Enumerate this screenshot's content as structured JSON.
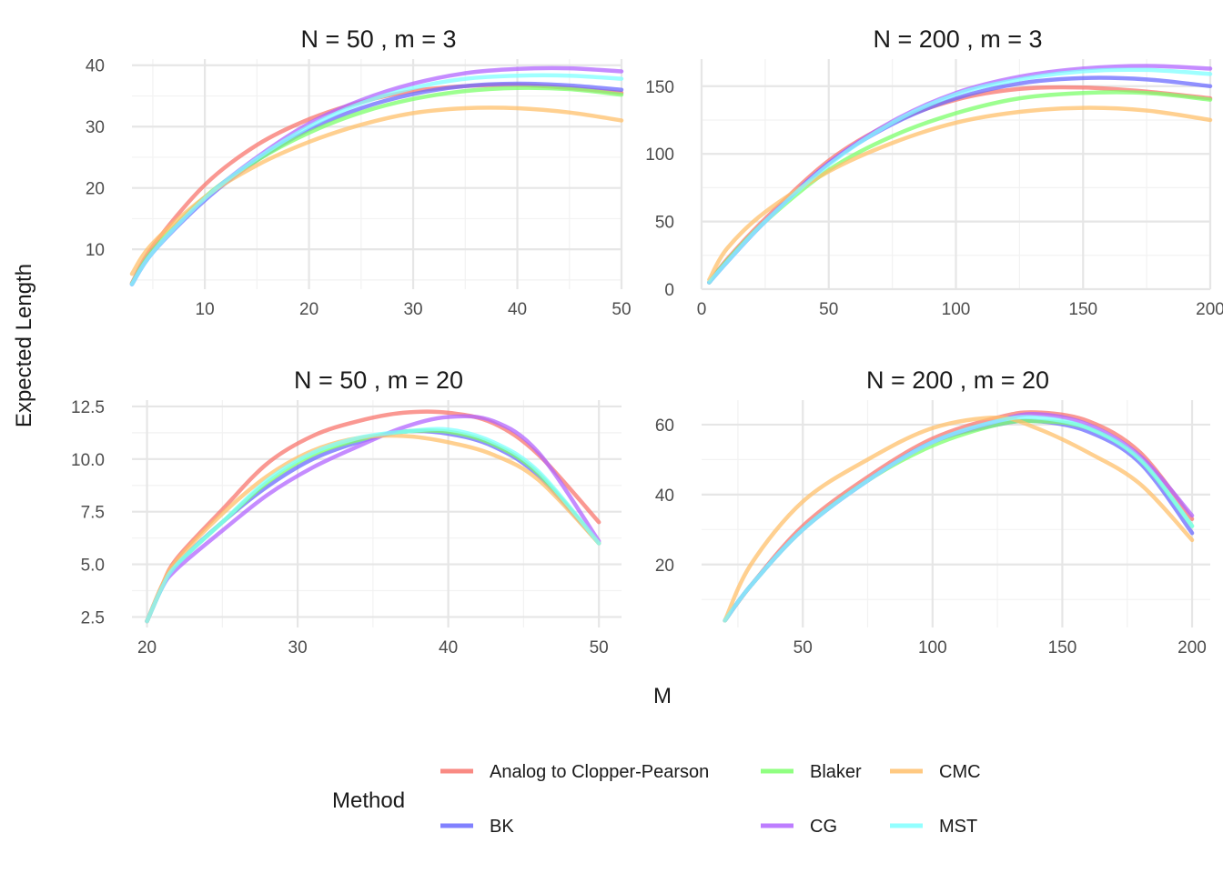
{
  "figure": {
    "xlabel": "M",
    "ylabel": "Expected Length",
    "legend": {
      "title": "Method",
      "position": "bottom"
    }
  },
  "series_styles": [
    {
      "name": "Analog to Clopper-Pearson",
      "color": "#F8766D"
    },
    {
      "name": "BK",
      "color": "#6B6BFF"
    },
    {
      "name": "Blaker",
      "color": "#7CFF6B"
    },
    {
      "name": "CG",
      "color": "#B266FF"
    },
    {
      "name": "CMC",
      "color": "#FFC06B"
    },
    {
      "name": "MST",
      "color": "#7FFFFF"
    }
  ],
  "chart_data": [
    {
      "type": "line",
      "title": "N = 50 , m = 3",
      "xlim": [
        3,
        50
      ],
      "ylim": [
        3.5,
        41
      ],
      "xticks": [
        10,
        20,
        30,
        40,
        50
      ],
      "yticks": [
        10,
        20,
        30,
        40
      ],
      "grid": true,
      "series": [
        {
          "name": "Analog to Clopper-Pearson",
          "x": [
            3,
            5,
            10,
            15,
            20,
            25,
            30,
            35,
            40,
            45,
            50
          ],
          "y": [
            4.5,
            10.5,
            20.5,
            27,
            31.2,
            34,
            35.8,
            36.6,
            36.8,
            36.3,
            35.5
          ]
        },
        {
          "name": "BK",
          "x": [
            3,
            5,
            10,
            15,
            20,
            25,
            30,
            35,
            40,
            45,
            50
          ],
          "y": [
            4.3,
            9.5,
            18,
            24.5,
            29.5,
            33,
            35.3,
            36.6,
            37,
            36.7,
            36
          ]
        },
        {
          "name": "Blaker",
          "x": [
            3,
            5,
            10,
            15,
            20,
            25,
            30,
            35,
            40,
            45,
            50
          ],
          "y": [
            4.4,
            9.8,
            18.5,
            24.5,
            29,
            32.3,
            34.5,
            35.8,
            36.3,
            36.1,
            35.2
          ]
        },
        {
          "name": "CG",
          "x": [
            3,
            5,
            10,
            15,
            20,
            25,
            30,
            35,
            40,
            45,
            50
          ],
          "y": [
            4.3,
            9.5,
            18.3,
            25,
            30.5,
            34.3,
            37,
            38.7,
            39.4,
            39.5,
            39
          ]
        },
        {
          "name": "CMC",
          "x": [
            3,
            5,
            10,
            15,
            20,
            25,
            30,
            35,
            40,
            45,
            50
          ],
          "y": [
            6,
            11,
            18.5,
            23.7,
            27.5,
            30.3,
            32.2,
            33,
            33,
            32.3,
            31
          ]
        },
        {
          "name": "MST",
          "x": [
            3,
            5,
            10,
            15,
            20,
            25,
            30,
            35,
            40,
            45,
            50
          ],
          "y": [
            4.3,
            9.5,
            18.3,
            24.8,
            30,
            33.8,
            36.3,
            37.8,
            38.3,
            38.3,
            37.8
          ]
        }
      ]
    },
    {
      "type": "line",
      "title": "N = 200 , m = 3",
      "xlim": [
        0,
        200
      ],
      "ylim": [
        0,
        170
      ],
      "xticks": [
        0,
        50,
        100,
        150,
        200
      ],
      "yticks": [
        0,
        50,
        100,
        150
      ],
      "grid": true,
      "series": [
        {
          "name": "Analog to Clopper-Pearson",
          "x": [
            3,
            10,
            25,
            50,
            75,
            100,
            125,
            150,
            175,
            200
          ],
          "y": [
            5,
            22,
            52,
            95,
            123,
            140,
            148,
            149,
            146,
            141
          ]
        },
        {
          "name": "BK",
          "x": [
            3,
            10,
            25,
            50,
            75,
            100,
            125,
            150,
            175,
            200
          ],
          "y": [
            5,
            20,
            50,
            93,
            122,
            141,
            152,
            156,
            155,
            150
          ]
        },
        {
          "name": "Blaker",
          "x": [
            3,
            10,
            25,
            50,
            75,
            100,
            125,
            150,
            175,
            200
          ],
          "y": [
            5,
            21,
            50,
            88,
            113,
            130,
            141,
            145,
            145,
            140
          ]
        },
        {
          "name": "CG",
          "x": [
            3,
            10,
            25,
            50,
            75,
            100,
            125,
            150,
            175,
            200
          ],
          "y": [
            5,
            20,
            50,
            93,
            124,
            145,
            157,
            163,
            165,
            163
          ]
        },
        {
          "name": "CMC",
          "x": [
            3,
            10,
            25,
            50,
            75,
            100,
            125,
            150,
            175,
            200
          ],
          "y": [
            7,
            30,
            57,
            87,
            108,
            123,
            131,
            134,
            132,
            125
          ]
        },
        {
          "name": "MST",
          "x": [
            3,
            10,
            25,
            50,
            75,
            100,
            125,
            150,
            175,
            200
          ],
          "y": [
            5,
            20,
            50,
            92,
            123,
            144,
            155,
            161,
            162,
            159
          ]
        }
      ]
    },
    {
      "type": "line",
      "title": "N = 50 , m = 20",
      "xlim": [
        19,
        51.5
      ],
      "ylim": [
        2,
        12.8
      ],
      "xticks": [
        20,
        30,
        40,
        50
      ],
      "yticks": [
        2.5,
        5.0,
        7.5,
        10.0,
        12.5
      ],
      "ytick_labels": [
        "2.5",
        "5.0",
        "7.5",
        "10.0",
        "12.5"
      ],
      "grid": true,
      "series": [
        {
          "name": "Analog to Clopper-Pearson",
          "x": [
            20,
            21,
            22,
            25,
            28,
            31,
            34,
            37,
            40,
            43,
            46,
            50
          ],
          "y": [
            2.3,
            4.0,
            5.3,
            7.6,
            9.8,
            11.1,
            11.8,
            12.2,
            12.2,
            11.7,
            10.2,
            7.0
          ]
        },
        {
          "name": "BK",
          "x": [
            20,
            21,
            22,
            25,
            28,
            31,
            34,
            37,
            40,
            43,
            46,
            50
          ],
          "y": [
            2.3,
            3.9,
            5.0,
            7.0,
            8.7,
            10.0,
            10.8,
            11.3,
            11.2,
            10.6,
            9.2,
            6.0
          ]
        },
        {
          "name": "Blaker",
          "x": [
            20,
            21,
            22,
            25,
            28,
            31,
            34,
            37,
            40,
            43,
            46,
            50
          ],
          "y": [
            2.3,
            3.9,
            5.0,
            7.0,
            8.9,
            10.2,
            10.9,
            11.3,
            11.3,
            10.7,
            9.3,
            6.0
          ]
        },
        {
          "name": "CG",
          "x": [
            20,
            21,
            22,
            25,
            28,
            31,
            34,
            37,
            40,
            43,
            46,
            50
          ],
          "y": [
            2.3,
            3.9,
            4.8,
            6.6,
            8.3,
            9.6,
            10.6,
            11.5,
            12.0,
            11.8,
            10.3,
            6.1
          ]
        },
        {
          "name": "CMC",
          "x": [
            20,
            21,
            22,
            25,
            28,
            31,
            34,
            37,
            40,
            43,
            46,
            50
          ],
          "y": [
            2.3,
            4.0,
            5.2,
            7.4,
            9.2,
            10.4,
            11.0,
            11.1,
            10.8,
            10.2,
            9.0,
            6.0
          ]
        },
        {
          "name": "MST",
          "x": [
            20,
            21,
            22,
            25,
            28,
            31,
            34,
            37,
            40,
            43,
            46,
            50
          ],
          "y": [
            2.3,
            3.9,
            5.0,
            7.0,
            9.0,
            10.3,
            11.0,
            11.3,
            11.4,
            10.8,
            9.4,
            6.0
          ]
        }
      ]
    },
    {
      "type": "line",
      "title": "N = 200 , m = 20",
      "xlim": [
        11,
        207
      ],
      "ylim": [
        2,
        67
      ],
      "xticks": [
        50,
        100,
        150,
        200
      ],
      "yticks": [
        20,
        40,
        60
      ],
      "grid": true,
      "series": [
        {
          "name": "Analog to Clopper-Pearson",
          "x": [
            20,
            30,
            50,
            75,
            100,
            125,
            140,
            160,
            180,
            200
          ],
          "y": [
            4,
            14,
            31,
            45,
            56,
            62,
            63.5,
            61,
            52,
            33
          ]
        },
        {
          "name": "BK",
          "x": [
            20,
            30,
            50,
            75,
            100,
            125,
            140,
            160,
            180,
            200
          ],
          "y": [
            4,
            14,
            30,
            44,
            55,
            60,
            61,
            58,
            49,
            29
          ]
        },
        {
          "name": "Blaker",
          "x": [
            20,
            30,
            50,
            75,
            100,
            125,
            140,
            160,
            180,
            200
          ],
          "y": [
            4,
            14,
            30,
            44,
            54,
            60,
            61,
            59,
            50,
            31
          ]
        },
        {
          "name": "CG",
          "x": [
            20,
            30,
            50,
            75,
            100,
            125,
            140,
            160,
            180,
            200
          ],
          "y": [
            4,
            14,
            30,
            44,
            55,
            61,
            63,
            60,
            51,
            34
          ]
        },
        {
          "name": "CMC",
          "x": [
            20,
            30,
            50,
            75,
            100,
            125,
            140,
            160,
            180,
            200
          ],
          "y": [
            4,
            20,
            38,
            50,
            59,
            62,
            59,
            52,
            43,
            27
          ]
        },
        {
          "name": "MST",
          "x": [
            20,
            30,
            50,
            75,
            100,
            125,
            140,
            160,
            180,
            200
          ],
          "y": [
            4,
            14,
            30,
            44,
            55,
            61,
            62,
            59,
            50,
            31
          ]
        }
      ]
    }
  ]
}
